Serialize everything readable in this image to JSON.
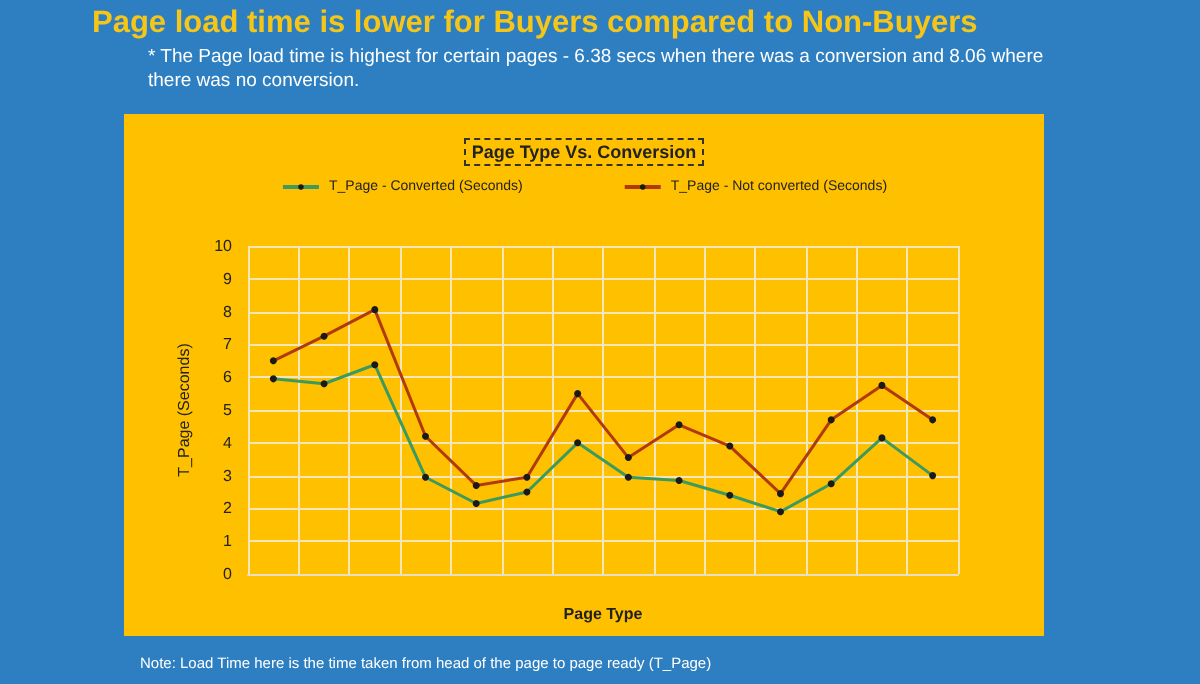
{
  "chart_data": {
    "type": "line",
    "title": "Page load time is lower for Buyers compared to Non-Buyers",
    "subtitle": "* The Page load time is highest for certain pages -  6.38 secs when there was a conversion and 8.06 where there was no conversion.",
    "annotations": [
      "Page Type Vs. Conversion",
      "Note: Load Time here is the time taken from head of the page to page ready (T_Page)"
    ],
    "xlabel": "Page Type",
    "ylabel": "T_Page (Seconds)",
    "categories": [
      null,
      null,
      null,
      null,
      null,
      null,
      null,
      null,
      null,
      null,
      null,
      null,
      null,
      null
    ],
    "series": [
      {
        "name": "T_Page - Converted (Seconds)",
        "color": "#3d9a5e",
        "values": [
          5.95,
          5.8,
          6.38,
          2.95,
          2.15,
          2.5,
          4.0,
          2.95,
          2.85,
          2.4,
          1.9,
          2.75,
          4.15,
          3.0
        ]
      },
      {
        "name": "T_Page - Not converted (Seconds)",
        "color": "#b03a0e",
        "values": [
          6.5,
          7.25,
          8.06,
          4.2,
          2.7,
          2.95,
          5.5,
          3.55,
          4.55,
          3.9,
          2.45,
          4.7,
          5.75,
          4.7
        ]
      }
    ],
    "ylim": [
      0,
      10
    ],
    "yticks": [
      0,
      1,
      2,
      3,
      4,
      5,
      6,
      7,
      8,
      9,
      10
    ],
    "grid": true,
    "legend": "top",
    "marker": "circle",
    "line_style": "solid"
  }
}
